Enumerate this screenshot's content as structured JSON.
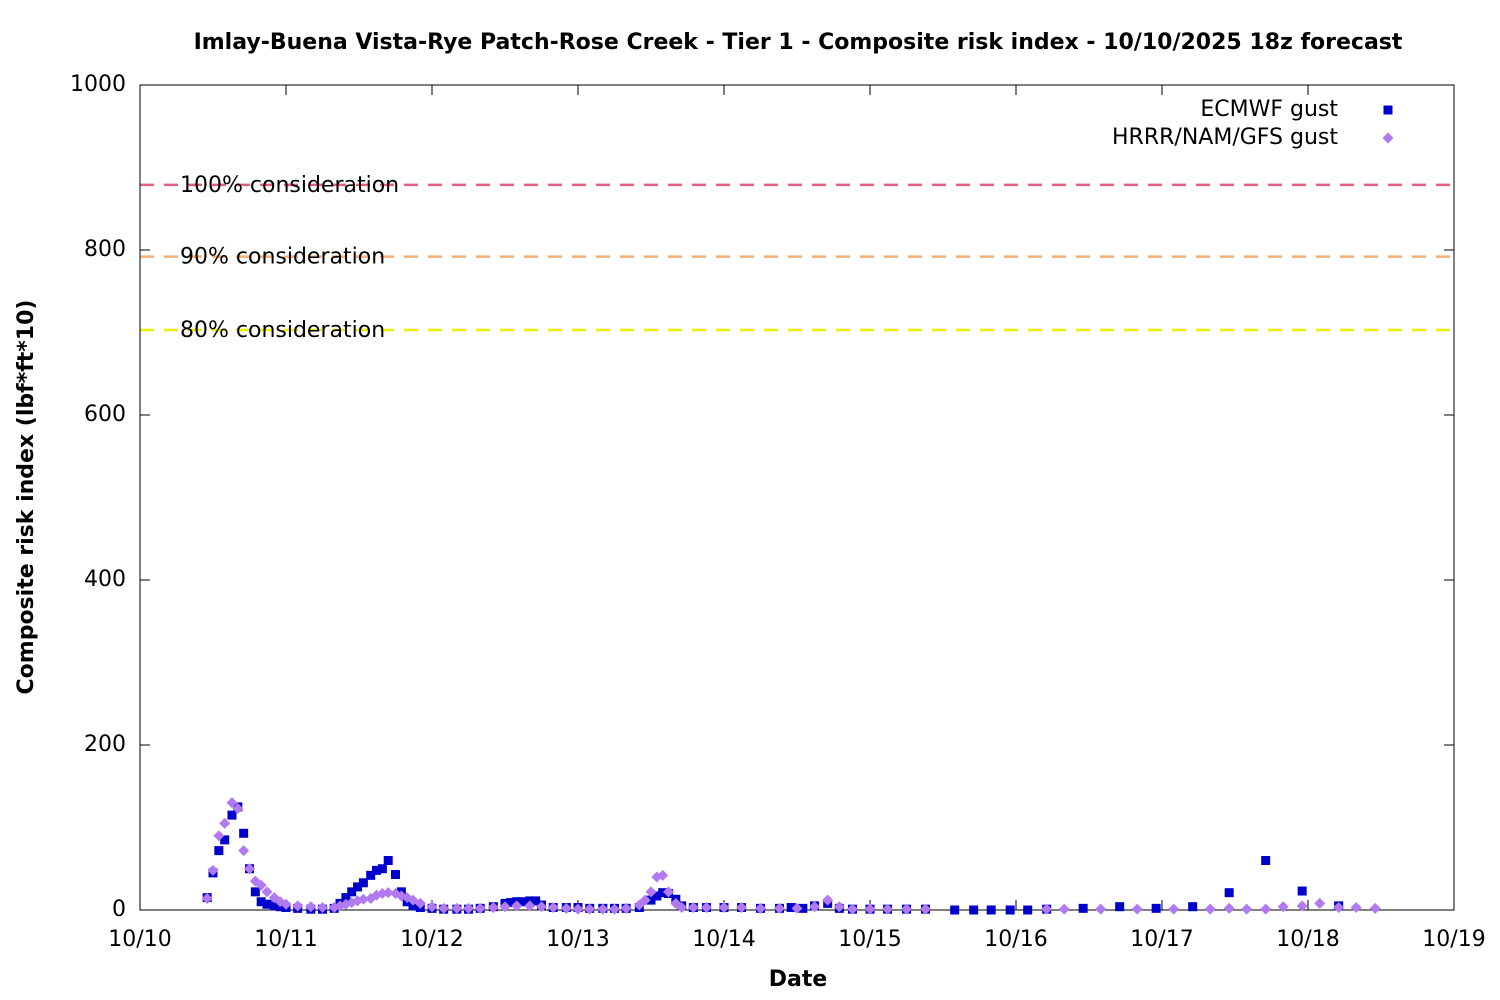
{
  "chart_data": {
    "type": "scatter",
    "title": "Imlay-Buena Vista-Rye Patch-Rose Creek - Tier 1 - Composite risk index - 10/10/2025 18z forecast",
    "x_label": "Date",
    "y_label": "Composite risk index (lbf*ft*10)",
    "xlim": [
      0,
      9
    ],
    "ylim": [
      0,
      1000
    ],
    "xticks": [
      {
        "value": 0,
        "label": "10/10"
      },
      {
        "value": 1,
        "label": "10/11"
      },
      {
        "value": 2,
        "label": "10/12"
      },
      {
        "value": 3,
        "label": "10/13"
      },
      {
        "value": 4,
        "label": "10/14"
      },
      {
        "value": 5,
        "label": "10/15"
      },
      {
        "value": 6,
        "label": "10/16"
      },
      {
        "value": 7,
        "label": "10/17"
      },
      {
        "value": 8,
        "label": "10/18"
      },
      {
        "value": 9,
        "label": "10/19"
      }
    ],
    "yticks": [
      0,
      200,
      400,
      600,
      800,
      1000
    ],
    "grid": false,
    "legend": "top-right",
    "reference_lines": [
      {
        "label": "100% consideration",
        "value": 879,
        "color": "#e0607e"
      },
      {
        "label": "90% consideration",
        "value": 792,
        "color": "#f5b07a"
      },
      {
        "label": "80% consideration",
        "value": 703,
        "color": "#eeee00"
      }
    ],
    "series": [
      {
        "name": "ECMWF gust",
        "color": "#0000cc",
        "marker": "square",
        "x": [
          0.46,
          0.5,
          0.54,
          0.58,
          0.63,
          0.67,
          0.71,
          0.75,
          0.79,
          0.83,
          0.87,
          0.92,
          0.96,
          1.0,
          1.08,
          1.17,
          1.25,
          1.33,
          1.37,
          1.41,
          1.45,
          1.49,
          1.53,
          1.58,
          1.62,
          1.66,
          1.7,
          1.75,
          1.79,
          1.83,
          1.87,
          1.92,
          2.0,
          2.08,
          2.17,
          2.25,
          2.33,
          2.42,
          2.5,
          2.54,
          2.58,
          2.62,
          2.67,
          2.71,
          2.75,
          2.83,
          2.92,
          3.0,
          3.08,
          3.17,
          3.25,
          3.33,
          3.42,
          3.5,
          3.54,
          3.58,
          3.62,
          3.67,
          3.71,
          3.79,
          3.88,
          4.0,
          4.12,
          4.25,
          4.38,
          4.46,
          4.54,
          4.62,
          4.71,
          4.79,
          4.88,
          5.0,
          5.12,
          5.25,
          5.38,
          5.58,
          5.71,
          5.83,
          5.96,
          6.08,
          6.21,
          6.46,
          6.71,
          6.96,
          7.21,
          7.46,
          7.71,
          7.96,
          8.21
        ],
        "values": [
          15,
          45,
          72,
          85,
          115,
          125,
          93,
          50,
          22,
          10,
          7,
          5,
          4,
          3,
          2,
          1,
          1,
          2,
          8,
          15,
          22,
          28,
          33,
          42,
          48,
          50,
          60,
          43,
          22,
          10,
          5,
          3,
          2,
          1,
          1,
          1,
          2,
          4,
          8,
          9,
          10,
          10,
          11,
          11,
          6,
          3,
          3,
          3,
          2,
          2,
          2,
          2,
          3,
          12,
          17,
          21,
          20,
          13,
          5,
          3,
          3,
          3,
          3,
          2,
          2,
          3,
          2,
          5,
          8,
          2,
          1,
          1,
          1,
          1,
          1,
          0,
          0,
          0,
          0,
          0,
          1,
          2,
          4,
          2,
          4,
          21,
          60,
          23,
          5
        ]
      },
      {
        "name": "HRRR/NAM/GFS gust",
        "color": "#b27af0",
        "marker": "diamond",
        "x": [
          0.46,
          0.5,
          0.54,
          0.58,
          0.63,
          0.67,
          0.71,
          0.75,
          0.79,
          0.83,
          0.87,
          0.92,
          0.96,
          1.0,
          1.08,
          1.17,
          1.25,
          1.33,
          1.37,
          1.41,
          1.45,
          1.49,
          1.53,
          1.58,
          1.62,
          1.66,
          1.7,
          1.75,
          1.79,
          1.83,
          1.87,
          1.92,
          2.0,
          2.08,
          2.17,
          2.25,
          2.33,
          2.42,
          2.5,
          2.58,
          2.67,
          2.75,
          2.83,
          2.92,
          3.0,
          3.08,
          3.17,
          3.25,
          3.33,
          3.42,
          3.46,
          3.5,
          3.54,
          3.58,
          3.62,
          3.67,
          3.71,
          3.79,
          3.88,
          4.0,
          4.12,
          4.25,
          4.38,
          4.5,
          4.62,
          4.71,
          4.79,
          4.88,
          5.0,
          5.12,
          5.25,
          5.38,
          6.21,
          6.33,
          6.58,
          6.83,
          7.08,
          7.33,
          7.46,
          7.58,
          7.71,
          7.83,
          7.96,
          8.08,
          8.21,
          8.33,
          8.46
        ],
        "values": [
          14,
          48,
          90,
          105,
          130,
          123,
          72,
          50,
          35,
          30,
          22,
          15,
          10,
          7,
          5,
          4,
          3,
          3,
          5,
          7,
          9,
          11,
          13,
          14,
          18,
          20,
          21,
          20,
          17,
          15,
          12,
          8,
          4,
          2,
          2,
          2,
          2,
          3,
          4,
          5,
          5,
          4,
          3,
          2,
          1,
          1,
          1,
          1,
          2,
          6,
          12,
          22,
          40,
          42,
          22,
          8,
          3,
          3,
          3,
          3,
          3,
          2,
          2,
          2,
          4,
          12,
          4,
          1,
          1,
          1,
          1,
          1,
          1,
          1,
          1,
          1,
          1,
          1,
          2,
          1,
          1,
          4,
          5,
          8,
          3,
          3,
          2
        ]
      }
    ]
  }
}
